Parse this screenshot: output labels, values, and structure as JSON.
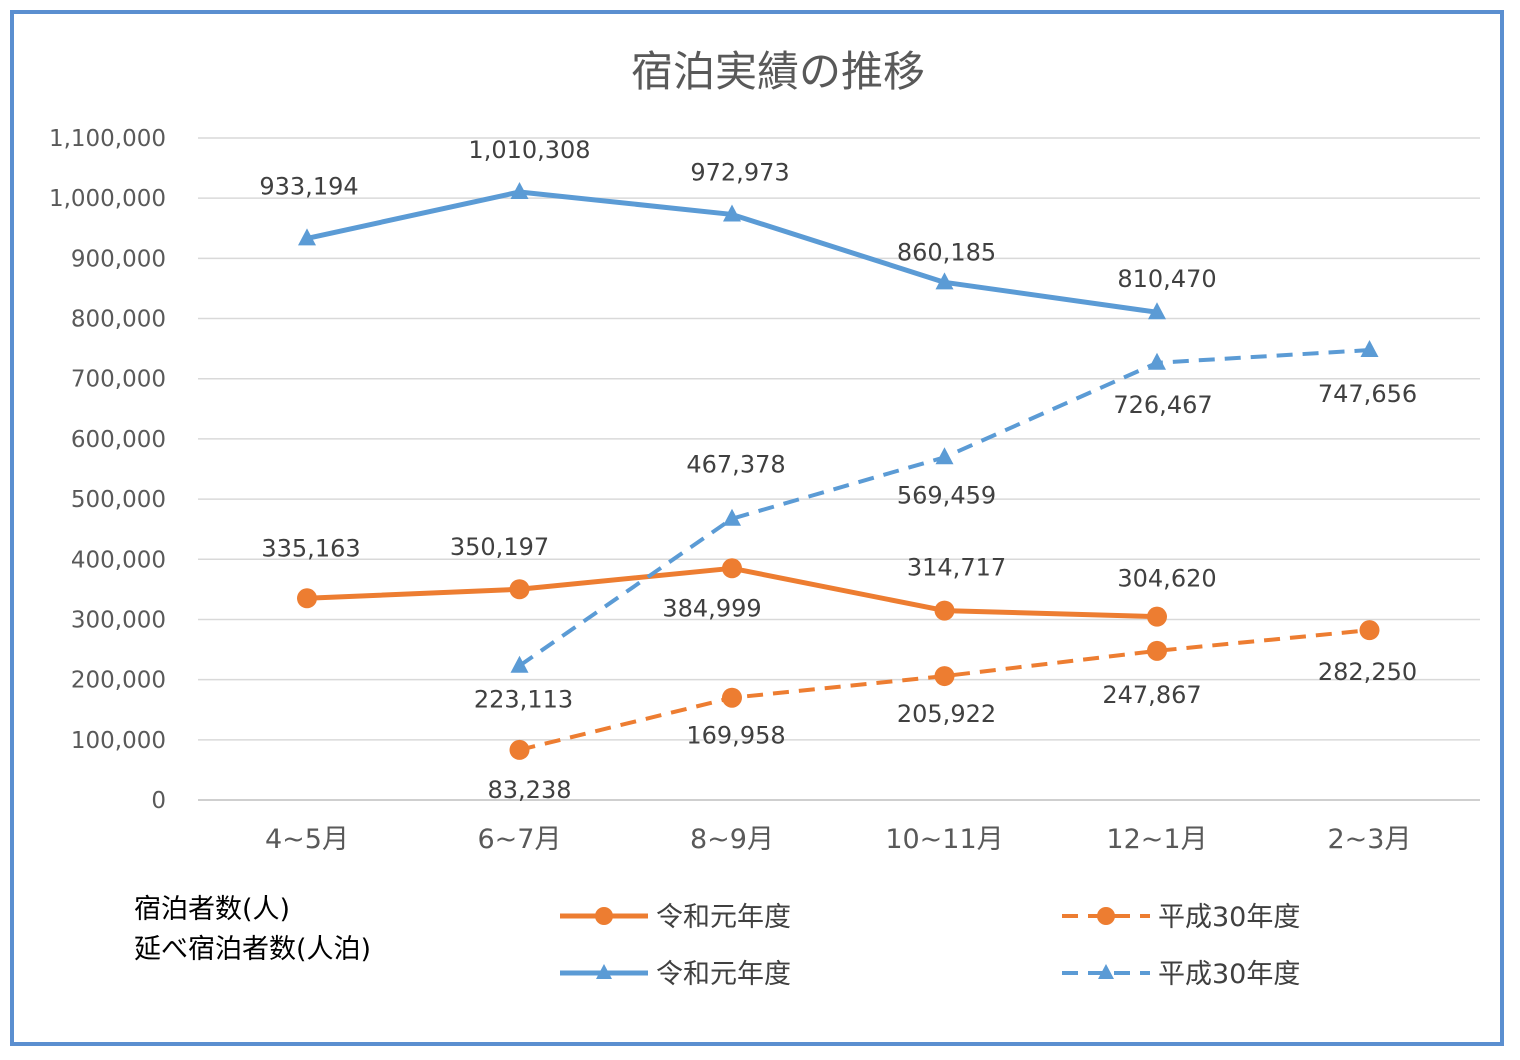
{
  "chart_data": {
    "type": "line",
    "title": "宿泊実績の推移",
    "categories": [
      "4~5月",
      "6~7月",
      "8~9月",
      "10~11月",
      "12~1月",
      "2~3月"
    ],
    "ylim": [
      0,
      1100000
    ],
    "yticks": [
      0,
      100000,
      200000,
      300000,
      400000,
      500000,
      600000,
      700000,
      800000,
      900000,
      1000000,
      1100000
    ],
    "ytick_labels": [
      "0",
      "100,000",
      "200,000",
      "300,000",
      "400,000",
      "500,000",
      "600,000",
      "700,000",
      "800,000",
      "900,000",
      "1,000,000",
      "1,100,000"
    ],
    "grid": true,
    "legend_position": "bottom",
    "notes": [
      "宿泊者数(人)",
      "延べ宿泊者数(人泊)"
    ],
    "series": [
      {
        "name": "令和元年度",
        "metric": "宿泊者数(人)",
        "color": "#ED7D31",
        "line_style": "solid",
        "marker": "circle",
        "values": [
          335163,
          350197,
          384999,
          314717,
          304620,
          null
        ],
        "labels": [
          "335,163",
          "350,197",
          "384,999",
          "314,717",
          "304,620",
          ""
        ]
      },
      {
        "name": "平成30年度",
        "metric": "宿泊者数(人)",
        "color": "#ED7D31",
        "line_style": "dashed",
        "marker": "circle",
        "values": [
          null,
          83238,
          169958,
          205922,
          247867,
          282250
        ],
        "labels": [
          "",
          "83,238",
          "169,958",
          "205,922",
          "247,867",
          "282,250"
        ]
      },
      {
        "name": "令和元年度",
        "metric": "延べ宿泊者数(人泊)",
        "color": "#5B9BD5",
        "line_style": "solid",
        "marker": "triangle",
        "values": [
          933194,
          1010308,
          972973,
          860185,
          810470,
          null
        ],
        "labels": [
          "933,194",
          "1,010,308",
          "972,973",
          "860,185",
          "810,470",
          ""
        ]
      },
      {
        "name": "平成30年度",
        "metric": "延べ宿泊者数(人泊)",
        "color": "#5B9BD5",
        "line_style": "dashed",
        "marker": "triangle",
        "values": [
          null,
          223113,
          467378,
          569459,
          726467,
          747656
        ],
        "labels": [
          "",
          "223,113",
          "467,378",
          "569,459",
          "726,467",
          "747,656"
        ]
      }
    ]
  }
}
